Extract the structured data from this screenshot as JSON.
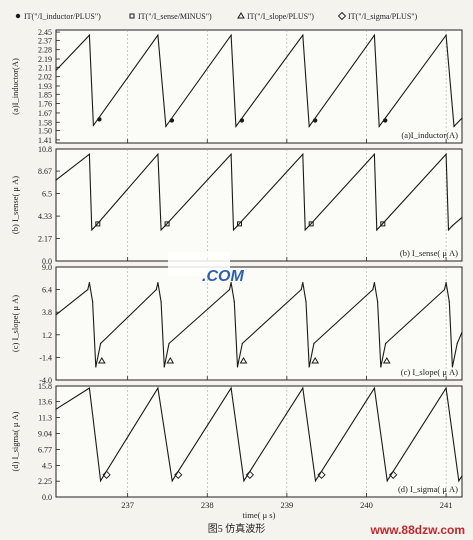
{
  "legend": {
    "items": [
      {
        "label": "IT(\"/I_inductor/PLUS\")",
        "marker": "circle"
      },
      {
        "label": "IT(\"/I_sense/MINUS\")",
        "marker": "square"
      },
      {
        "label": "IT(\"/I_slope/PLUS\")",
        "marker": "triangle"
      },
      {
        "label": "IT(\"/I_sigma/PLUS\")",
        "marker": "diamond"
      }
    ]
  },
  "chart_data": [
    {
      "type": "line",
      "ylabel": "(a)I_inductor(A)",
      "annotation": "(a)I_inductor(A)",
      "yticks": [
        "2.45",
        "2.37",
        "2.28",
        "2.19",
        "2.11",
        "2.02",
        "1.93",
        "1.85",
        "1.76",
        "1.67",
        "1.58",
        "1.50",
        "1.41"
      ],
      "ylim": [
        1.38,
        2.47
      ],
      "series": [
        {
          "marker": "circle",
          "x": [
            236.1,
            236.52,
            236.57,
            237.38,
            237.48,
            238.3,
            238.36,
            239.2,
            239.28,
            240.1,
            240.16,
            241.0,
            241.1,
            241.2
          ],
          "y": [
            2.08,
            2.42,
            1.55,
            2.42,
            1.54,
            2.42,
            1.54,
            2.42,
            1.54,
            2.42,
            1.54,
            2.42,
            1.54,
            1.62
          ]
        }
      ]
    },
    {
      "type": "line",
      "ylabel": "(b) I_sense( μ A)",
      "annotation": "(b) I_sense( μ A)",
      "yticks": [
        "10.8",
        "8.67",
        "6.5",
        "4.33",
        "2.17",
        "0.0"
      ],
      "ylim": [
        0,
        10.8
      ],
      "series": [
        {
          "marker": "square",
          "x": [
            236.1,
            236.52,
            236.55,
            236.6,
            237.38,
            237.42,
            237.47,
            238.3,
            238.33,
            238.38,
            239.2,
            239.23,
            239.28,
            240.1,
            240.13,
            240.18,
            241.0,
            241.03,
            241.08,
            241.2
          ],
          "y": [
            7.8,
            10.3,
            3.0,
            3.4,
            10.3,
            3.0,
            3.4,
            10.3,
            3.0,
            3.4,
            10.3,
            3.0,
            3.4,
            10.3,
            3.0,
            3.4,
            10.3,
            3.0,
            3.4,
            4.2
          ]
        }
      ]
    },
    {
      "type": "line",
      "ylabel": "(c) I_slope( μ A)",
      "annotation": "(c) I_slope( μ A)",
      "yticks": [
        "9.0",
        "6.4",
        "3.8",
        "1.2",
        "-1.4",
        "-4.0"
      ],
      "ylim": [
        -4.0,
        9.0
      ],
      "series": [
        {
          "marker": "triangle",
          "x": [
            236.1,
            236.5,
            236.52,
            236.56,
            236.6,
            236.66,
            237.36,
            237.38,
            237.42,
            237.46,
            237.52,
            238.28,
            238.3,
            238.34,
            238.38,
            238.44,
            239.18,
            239.2,
            239.24,
            239.28,
            239.34,
            240.08,
            240.1,
            240.14,
            240.18,
            240.24,
            240.98,
            241.0,
            241.04,
            241.08,
            241.14,
            241.2
          ],
          "y": [
            3.5,
            6.4,
            7.2,
            5.0,
            -2.5,
            0.2,
            6.4,
            7.2,
            5.0,
            -2.5,
            0.2,
            6.4,
            7.2,
            5.0,
            -2.5,
            0.2,
            6.4,
            7.2,
            5.0,
            -2.5,
            0.2,
            6.4,
            7.2,
            5.0,
            -2.5,
            0.2,
            6.4,
            7.2,
            5.0,
            -2.5,
            0.2,
            1.5
          ]
        }
      ]
    },
    {
      "type": "line",
      "ylabel": "(d) I_sigma( μ A)",
      "annotation": "(d) I_sigma( μ A)",
      "yticks": [
        "15.8",
        "13.6",
        "11.3",
        "9.04",
        "6.77",
        "4.5",
        "2.25",
        "0.0"
      ],
      "ylim": [
        0,
        15.8
      ],
      "xlabel": "time( μ s)",
      "xticks": [
        237,
        238,
        239,
        240,
        241
      ],
      "xlim": [
        236.1,
        241.2
      ],
      "series": [
        {
          "marker": "diamond",
          "x": [
            236.1,
            236.52,
            236.66,
            237.38,
            237.56,
            238.3,
            238.46,
            239.2,
            239.36,
            240.1,
            240.26,
            241.0,
            241.16,
            241.2
          ],
          "y": [
            12.5,
            15.5,
            2.3,
            15.5,
            2.3,
            15.5,
            2.3,
            15.5,
            2.3,
            15.5,
            2.3,
            15.5,
            2.3,
            3.0
          ]
        }
      ]
    }
  ],
  "watermark": {
    "text": ".COM",
    "color": "#2f5fb0"
  },
  "caption": "图5  仿真波形",
  "site": "www.88dzw.com",
  "colors": {
    "trace": "#1a1a1a",
    "frame": "#222222",
    "grid": "#9a9a9a",
    "site": "#c0262c"
  }
}
